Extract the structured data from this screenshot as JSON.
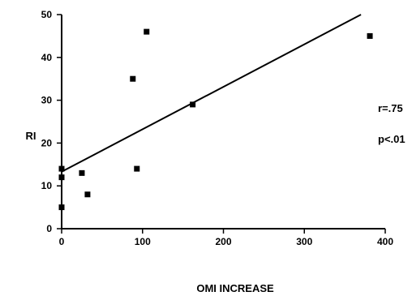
{
  "chart_data": {
    "type": "scatter",
    "title": "",
    "xlabel": "OMI INCREASE",
    "ylabel": "RI",
    "xlim": [
      0,
      400
    ],
    "ylim": [
      0,
      50
    ],
    "x_ticks": [
      0,
      100,
      200,
      300,
      400
    ],
    "y_ticks": [
      0,
      10,
      20,
      30,
      40,
      50
    ],
    "grid": false,
    "series": [
      {
        "points": [
          {
            "x": 0,
            "y": 5
          },
          {
            "x": 0,
            "y": 12
          },
          {
            "x": 0,
            "y": 14
          },
          {
            "x": 25,
            "y": 13
          },
          {
            "x": 32,
            "y": 8
          },
          {
            "x": 88,
            "y": 35
          },
          {
            "x": 93,
            "y": 14
          },
          {
            "x": 105,
            "y": 46
          },
          {
            "x": 162,
            "y": 29
          },
          {
            "x": 381,
            "y": 45
          }
        ]
      }
    ],
    "regression_line": {
      "x": [
        0,
        370
      ],
      "y": [
        13.3,
        50
      ]
    },
    "annotations": [
      "r=.75",
      "p<.01"
    ]
  }
}
